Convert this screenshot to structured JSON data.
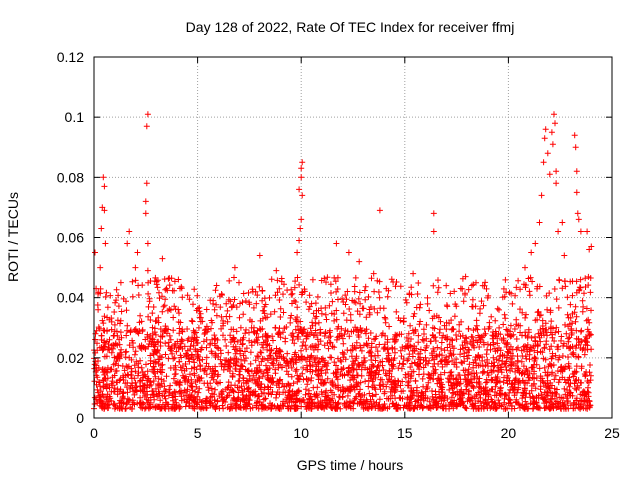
{
  "chart_data": {
    "type": "scatter",
    "title": "Day 128 of 2022, Rate Of TEC Index for receiver ffmj",
    "xlabel": "GPS time / hours",
    "ylabel": "ROTI / TECUs",
    "xlim": [
      0,
      25
    ],
    "ylim": [
      0,
      0.12
    ],
    "xticks": [
      0,
      5,
      10,
      15,
      20,
      25
    ],
    "xtick_labels": [
      "0",
      "5",
      "10",
      "15",
      "20",
      "25"
    ],
    "yticks": [
      0,
      0.02,
      0.04,
      0.06,
      0.08,
      0.1,
      0.12
    ],
    "ytick_labels": [
      "0",
      "0.02",
      "0.04",
      "0.06",
      "0.08",
      "0.1",
      "0.12"
    ],
    "grid": true,
    "marker": "+",
    "color": "#ff0000",
    "series": [
      {
        "name": "ROTI",
        "description_note": "dense cloud of points between 0.003 and ~0.03 across 0-24 h; outliers listed",
        "x_range": [
          0,
          24
        ],
        "baseline_band": [
          0.003,
          0.03
        ],
        "outliers": [
          {
            "x": 0.05,
            "y": 0.055
          },
          {
            "x": 0.1,
            "y": 0.043
          },
          {
            "x": 0.2,
            "y": 0.036
          },
          {
            "x": 0.3,
            "y": 0.05
          },
          {
            "x": 0.35,
            "y": 0.063
          },
          {
            "x": 0.4,
            "y": 0.07
          },
          {
            "x": 0.45,
            "y": 0.08
          },
          {
            "x": 0.5,
            "y": 0.077
          },
          {
            "x": 0.5,
            "y": 0.069
          },
          {
            "x": 0.55,
            "y": 0.058
          },
          {
            "x": 1.3,
            "y": 0.045
          },
          {
            "x": 1.6,
            "y": 0.058
          },
          {
            "x": 1.7,
            "y": 0.062
          },
          {
            "x": 2.0,
            "y": 0.05
          },
          {
            "x": 2.1,
            "y": 0.055
          },
          {
            "x": 2.5,
            "y": 0.068
          },
          {
            "x": 2.5,
            "y": 0.072
          },
          {
            "x": 2.55,
            "y": 0.078
          },
          {
            "x": 2.55,
            "y": 0.097
          },
          {
            "x": 2.6,
            "y": 0.101
          },
          {
            "x": 2.6,
            "y": 0.058
          },
          {
            "x": 2.6,
            "y": 0.049
          },
          {
            "x": 3.3,
            "y": 0.053
          },
          {
            "x": 3.5,
            "y": 0.043
          },
          {
            "x": 6.8,
            "y": 0.05
          },
          {
            "x": 7.0,
            "y": 0.045
          },
          {
            "x": 8.0,
            "y": 0.054
          },
          {
            "x": 8.8,
            "y": 0.049
          },
          {
            "x": 9.8,
            "y": 0.055
          },
          {
            "x": 9.9,
            "y": 0.059
          },
          {
            "x": 9.95,
            "y": 0.063
          },
          {
            "x": 10.0,
            "y": 0.066
          },
          {
            "x": 9.9,
            "y": 0.076
          },
          {
            "x": 10.0,
            "y": 0.08
          },
          {
            "x": 10.05,
            "y": 0.074
          },
          {
            "x": 10.0,
            "y": 0.083
          },
          {
            "x": 10.05,
            "y": 0.085
          },
          {
            "x": 11.7,
            "y": 0.058
          },
          {
            "x": 12.3,
            "y": 0.055
          },
          {
            "x": 12.8,
            "y": 0.052
          },
          {
            "x": 13.5,
            "y": 0.048
          },
          {
            "x": 13.8,
            "y": 0.069
          },
          {
            "x": 15.4,
            "y": 0.048
          },
          {
            "x": 16.4,
            "y": 0.068
          },
          {
            "x": 16.4,
            "y": 0.062
          },
          {
            "x": 17.0,
            "y": 0.044
          },
          {
            "x": 20.8,
            "y": 0.05
          },
          {
            "x": 21.1,
            "y": 0.055
          },
          {
            "x": 21.3,
            "y": 0.058
          },
          {
            "x": 21.5,
            "y": 0.065
          },
          {
            "x": 21.6,
            "y": 0.074
          },
          {
            "x": 21.7,
            "y": 0.085
          },
          {
            "x": 21.75,
            "y": 0.093
          },
          {
            "x": 21.8,
            "y": 0.096
          },
          {
            "x": 21.9,
            "y": 0.088
          },
          {
            "x": 22.0,
            "y": 0.081
          },
          {
            "x": 22.1,
            "y": 0.095
          },
          {
            "x": 22.15,
            "y": 0.091
          },
          {
            "x": 22.2,
            "y": 0.101
          },
          {
            "x": 22.25,
            "y": 0.098
          },
          {
            "x": 22.3,
            "y": 0.078
          },
          {
            "x": 22.3,
            "y": 0.082
          },
          {
            "x": 22.4,
            "y": 0.062
          },
          {
            "x": 22.6,
            "y": 0.065
          },
          {
            "x": 22.7,
            "y": 0.054
          },
          {
            "x": 23.2,
            "y": 0.094
          },
          {
            "x": 23.25,
            "y": 0.09
          },
          {
            "x": 23.3,
            "y": 0.082
          },
          {
            "x": 23.3,
            "y": 0.075
          },
          {
            "x": 23.35,
            "y": 0.068
          },
          {
            "x": 23.4,
            "y": 0.066
          },
          {
            "x": 23.5,
            "y": 0.062
          },
          {
            "x": 23.8,
            "y": 0.062
          },
          {
            "x": 23.9,
            "y": 0.056
          },
          {
            "x": 24.0,
            "y": 0.057
          }
        ]
      }
    ]
  }
}
